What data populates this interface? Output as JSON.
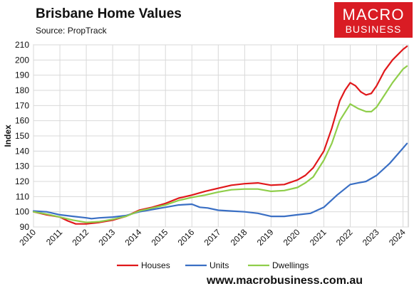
{
  "header": {
    "title": "Brisbane Home Values",
    "source": "Source: PropTrack"
  },
  "logo": {
    "line1": "MACRO",
    "line2": "BUSINESS"
  },
  "footer": {
    "website": "www.macrobusiness.com.au"
  },
  "colors": {
    "houses": "#e0181b",
    "units": "#3a6fc4",
    "dwellings": "#8fce4a",
    "logo_bg": "#d91c24"
  },
  "chart_data": {
    "type": "line",
    "title": "Brisbane Home Values",
    "ylabel": "Index",
    "xlabel": "",
    "xlim": [
      2010,
      2024.2
    ],
    "ylim": [
      90,
      210
    ],
    "x_ticks": [
      "2010",
      "2011",
      "2012",
      "2013",
      "2014",
      "2015",
      "2016",
      "2017",
      "2018",
      "2019",
      "2020",
      "2021",
      "2022",
      "2023",
      "2024"
    ],
    "y_ticks": [
      "90",
      "100",
      "110",
      "120",
      "130",
      "140",
      "150",
      "160",
      "170",
      "180",
      "190",
      "200",
      "210"
    ],
    "grid": true,
    "legend": "bottom",
    "series": [
      {
        "name": "Houses",
        "color": "#e0181b",
        "x": [
          2010,
          2010.5,
          2011,
          2011.3,
          2011.6,
          2012,
          2012.5,
          2013,
          2013.5,
          2014,
          2014.5,
          2015,
          2015.5,
          2016,
          2016.5,
          2017,
          2017.5,
          2018,
          2018.5,
          2019,
          2019.5,
          2020,
          2020.3,
          2020.6,
          2021,
          2021.3,
          2021.6,
          2021.8,
          2022,
          2022.2,
          2022.4,
          2022.6,
          2022.8,
          2023,
          2023.3,
          2023.6,
          2024,
          2024.15
        ],
        "y": [
          100,
          98,
          96.5,
          94,
          92,
          92,
          93,
          94.5,
          97,
          101,
          103,
          105.5,
          109,
          111,
          113.5,
          115.5,
          117.5,
          118.5,
          119,
          117.5,
          118,
          121,
          124,
          129,
          140,
          155,
          173,
          180,
          185,
          183,
          179,
          177,
          178,
          183,
          193,
          200,
          207,
          209
        ]
      },
      {
        "name": "Units",
        "color": "#3a6fc4",
        "x": [
          2010,
          2010.5,
          2011,
          2011.5,
          2012,
          2012.2,
          2012.5,
          2013,
          2013.5,
          2014,
          2014.5,
          2015,
          2015.5,
          2016,
          2016.3,
          2016.6,
          2017,
          2017.5,
          2018,
          2018.5,
          2019,
          2019.5,
          2020,
          2020.5,
          2021,
          2021.5,
          2022,
          2022.3,
          2022.6,
          2023,
          2023.5,
          2024,
          2024.15
        ],
        "y": [
          100.5,
          100,
          98,
          97,
          96,
          95.5,
          96,
          96.5,
          97.5,
          100,
          101.5,
          103,
          104.5,
          105,
          103,
          102.5,
          101,
          100.5,
          100,
          99,
          97,
          97,
          98,
          99,
          103,
          111,
          118,
          119,
          120,
          124,
          132,
          142,
          145
        ]
      },
      {
        "name": "Dwellings",
        "color": "#8fce4a",
        "x": [
          2010,
          2010.5,
          2011,
          2011.5,
          2012,
          2012.5,
          2013,
          2013.5,
          2014,
          2014.5,
          2015,
          2015.5,
          2016,
          2016.5,
          2017,
          2017.5,
          2018,
          2018.5,
          2019,
          2019.5,
          2020,
          2020.3,
          2020.6,
          2021,
          2021.3,
          2021.6,
          2022,
          2022.3,
          2022.6,
          2022.8,
          2023,
          2023.3,
          2023.6,
          2024,
          2024.15
        ],
        "y": [
          100,
          98.5,
          96.5,
          94.5,
          93,
          93.5,
          95,
          97,
          100.5,
          102.5,
          104.5,
          107.5,
          109.5,
          111,
          113,
          114.5,
          115,
          115,
          113.5,
          114,
          116,
          119,
          123,
          134,
          145,
          160,
          171,
          168,
          166,
          166,
          169,
          177,
          185,
          194,
          196
        ]
      }
    ]
  }
}
